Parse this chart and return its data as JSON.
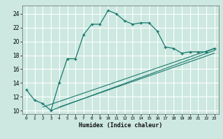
{
  "xlabel": "Humidex (Indice chaleur)",
  "bg_color": "#cce8e0",
  "grid_color": "#ffffff",
  "line_color": "#1a7a6e",
  "xlim": [
    -0.5,
    23.5
  ],
  "ylim": [
    9.5,
    25.2
  ],
  "xticks": [
    0,
    1,
    2,
    3,
    4,
    5,
    6,
    7,
    8,
    9,
    10,
    11,
    12,
    13,
    14,
    15,
    16,
    17,
    18,
    19,
    20,
    21,
    22,
    23
  ],
  "yticks": [
    10,
    12,
    14,
    16,
    18,
    20,
    22,
    24
  ],
  "main_x": [
    0,
    1,
    2,
    3,
    4,
    5,
    6,
    7,
    8,
    9,
    10,
    11,
    12,
    13,
    14,
    15,
    16,
    17,
    18,
    19,
    20,
    21,
    22,
    23
  ],
  "main_y": [
    13.0,
    11.5,
    11.0,
    10.0,
    14.0,
    17.5,
    17.5,
    21.0,
    22.5,
    22.5,
    24.5,
    24.0,
    23.0,
    22.5,
    22.7,
    22.7,
    21.5,
    19.2,
    19.0,
    18.3,
    18.5,
    18.5,
    18.5,
    19.0
  ],
  "line2_x": [
    2,
    23
  ],
  "line2_y": [
    10.5,
    19.0
  ],
  "line3_x": [
    3,
    23
  ],
  "line3_y": [
    10.0,
    18.7
  ],
  "line4_x": [
    4,
    23
  ],
  "line4_y": [
    10.5,
    18.3
  ]
}
